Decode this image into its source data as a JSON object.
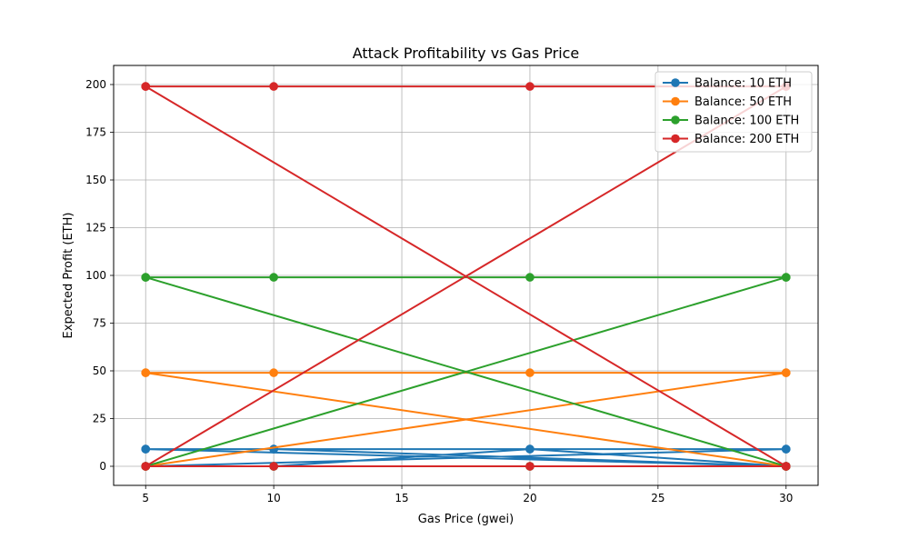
{
  "chart_data": {
    "type": "line",
    "title": "Attack Profitability vs Gas Price",
    "xlabel": "Gas Price (gwei)",
    "ylabel": "Expected Profit (ETH)",
    "xlim": [
      3.75,
      31.25
    ],
    "ylim": [
      -10,
      210
    ],
    "xticks": [
      5,
      10,
      15,
      20,
      25,
      30
    ],
    "yticks": [
      0,
      25,
      50,
      75,
      100,
      125,
      150,
      175,
      200
    ],
    "grid": true,
    "legend_position": "top-right",
    "series": [
      {
        "name": "Balance: 10 ETH",
        "color": "#1f77b4",
        "points": [
          [
            5,
            9
          ],
          [
            10,
            9
          ],
          [
            20,
            9
          ],
          [
            30,
            9
          ],
          [
            5,
            0
          ],
          [
            10,
            0
          ],
          [
            20,
            0
          ],
          [
            30,
            0
          ],
          [
            5,
            9
          ],
          [
            30,
            0
          ],
          [
            5,
            0
          ],
          [
            30,
            9
          ],
          [
            10,
            9
          ],
          [
            30,
            0
          ],
          [
            10,
            0
          ],
          [
            20,
            9
          ],
          [
            30,
            0
          ]
        ]
      },
      {
        "name": "Balance: 50 ETH",
        "color": "#ff7f0e",
        "points": [
          [
            5,
            49
          ],
          [
            10,
            49
          ],
          [
            20,
            49
          ],
          [
            30,
            49
          ],
          [
            5,
            0
          ],
          [
            10,
            0
          ],
          [
            20,
            0
          ],
          [
            30,
            0
          ],
          [
            5,
            49
          ],
          [
            30,
            0
          ],
          [
            5,
            0
          ],
          [
            30,
            49
          ]
        ]
      },
      {
        "name": "Balance: 100 ETH",
        "color": "#2ca02c",
        "points": [
          [
            5,
            99
          ],
          [
            10,
            99
          ],
          [
            20,
            99
          ],
          [
            30,
            99
          ],
          [
            5,
            0
          ],
          [
            10,
            0
          ],
          [
            20,
            0
          ],
          [
            30,
            0
          ],
          [
            5,
            99
          ],
          [
            30,
            0
          ],
          [
            5,
            0
          ],
          [
            30,
            99
          ]
        ]
      },
      {
        "name": "Balance: 200 ETH",
        "color": "#d62728",
        "points": [
          [
            5,
            199
          ],
          [
            10,
            199
          ],
          [
            20,
            199
          ],
          [
            30,
            199
          ],
          [
            5,
            0
          ],
          [
            10,
            0
          ],
          [
            20,
            0
          ],
          [
            30,
            0
          ],
          [
            5,
            199
          ],
          [
            30,
            0
          ],
          [
            5,
            0
          ],
          [
            30,
            199
          ]
        ]
      }
    ]
  }
}
